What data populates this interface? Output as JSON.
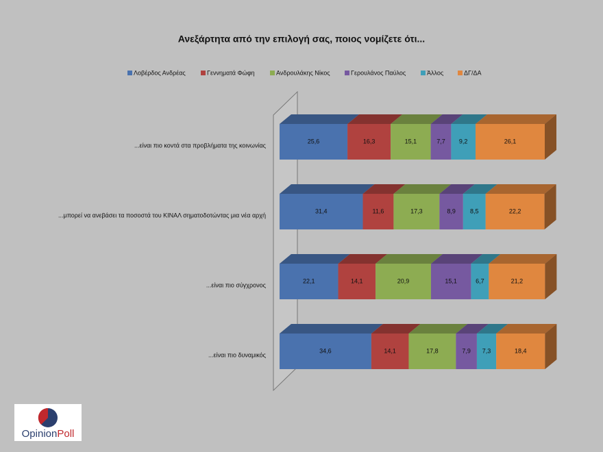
{
  "chart_data": {
    "type": "stacked-bar-3d",
    "title": "Ανεξάρτητα από την επιλογή σας,  ποιος νομίζετε ότι...",
    "categories": [
      "...είναι πιο κοντά στα προβλήματα της κοινωνίας",
      "...μπορεί να ανεβάσει τα ποσοστά του ΚΙΝΑΛ σηματοδοτώντας μια νέα αρχή",
      "...είναι πιο σύγχρονος",
      "...είναι πιο δυναμικός"
    ],
    "series": [
      {
        "name": "Λοβέρδος Ανδρέας",
        "color": "#4a72ae",
        "values": [
          25.6,
          31.4,
          22.1,
          34.6
        ],
        "value_labels": [
          "25,6",
          "31,4",
          "22,1",
          "34,6"
        ]
      },
      {
        "name": "Γεννηματά Φώφη",
        "color": "#b0423f",
        "values": [
          16.3,
          11.6,
          14.1,
          14.1
        ],
        "value_labels": [
          "16,3",
          "11,6",
          "14,1",
          "14,1"
        ]
      },
      {
        "name": "Ανδρουλάκης Νίκος",
        "color": "#8dac52",
        "values": [
          15.1,
          17.3,
          20.9,
          17.8
        ],
        "value_labels": [
          "15,1",
          "17,3",
          "20,9",
          "17,8"
        ]
      },
      {
        "name": "Γερουλάνος Παύλος",
        "color": "#7659a0",
        "values": [
          7.7,
          8.9,
          15.1,
          7.9
        ],
        "value_labels": [
          "7,7",
          "8,9",
          "15,1",
          "7,9"
        ]
      },
      {
        "name": "Άλλος",
        "color": "#3f9fb8",
        "values": [
          9.2,
          8.5,
          6.7,
          7.3
        ],
        "value_labels": [
          "9,2",
          "8,5",
          "6,7",
          "7,3"
        ]
      },
      {
        "name": "ΔΓ/ΔΑ",
        "color": "#e0873f",
        "values": [
          26.1,
          22.2,
          21.2,
          18.4
        ],
        "value_labels": [
          "26,1",
          "22,2",
          "21,2",
          "18,4"
        ]
      }
    ]
  },
  "logo": [
    "Opinion",
    "Poll"
  ]
}
